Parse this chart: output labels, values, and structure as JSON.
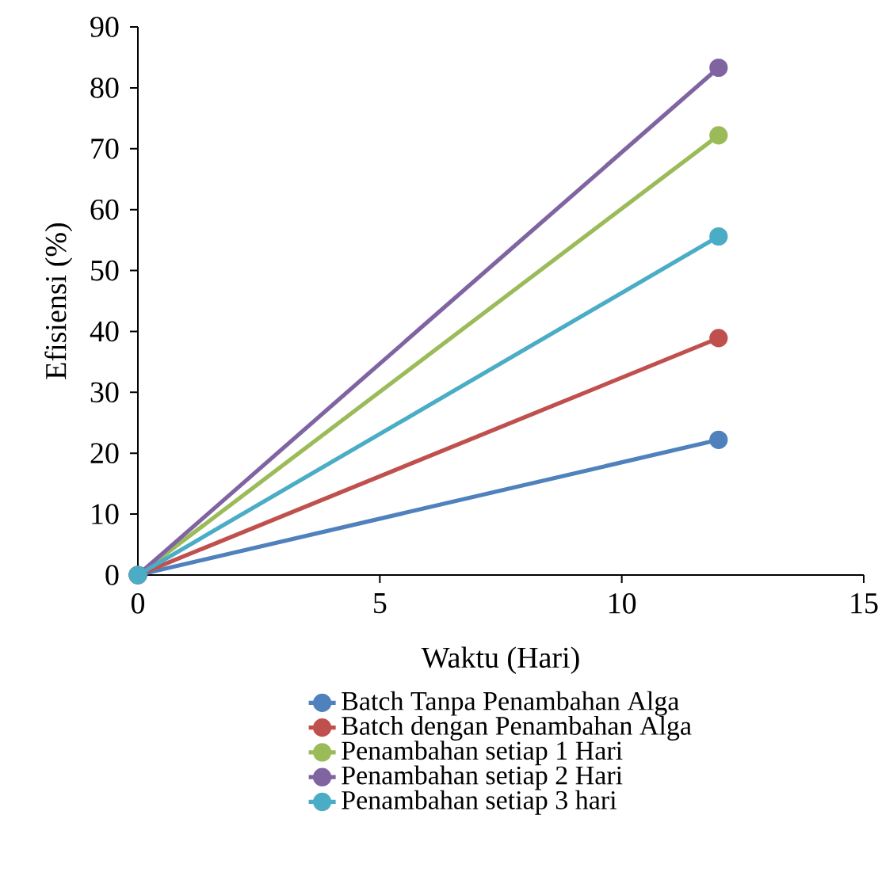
{
  "chart_data": {
    "type": "line",
    "xlabel": "Waktu (Hari)",
    "ylabel": "Efisiensi (%)",
    "xlim": [
      0,
      15
    ],
    "xticks": [
      0,
      5,
      10,
      15
    ],
    "ylim": [
      0,
      90
    ],
    "yticks": [
      0,
      10,
      20,
      30,
      40,
      50,
      60,
      70,
      80,
      90
    ],
    "x": [
      0,
      12
    ],
    "marker": "circle",
    "line_style": "solid",
    "legend": "bottom",
    "grid": false,
    "series": [
      {
        "name": "Batch Tanpa Penambahan Alga",
        "color": "#4f81bd",
        "values": [
          0,
          22.2
        ]
      },
      {
        "name": "Batch dengan Penambahan Alga",
        "color": "#c0504d",
        "values": [
          0,
          38.9
        ]
      },
      {
        "name": "Penambahan setiap 1 Hari",
        "color": "#9bbb59",
        "values": [
          0,
          72.2
        ]
      },
      {
        "name": "Penambahan setiap 2 Hari",
        "color": "#8064a2",
        "values": [
          0,
          83.3
        ]
      },
      {
        "name": "Penambahan setiap 3 hari",
        "color": "#4bacc6",
        "values": [
          0,
          55.6
        ]
      }
    ]
  }
}
